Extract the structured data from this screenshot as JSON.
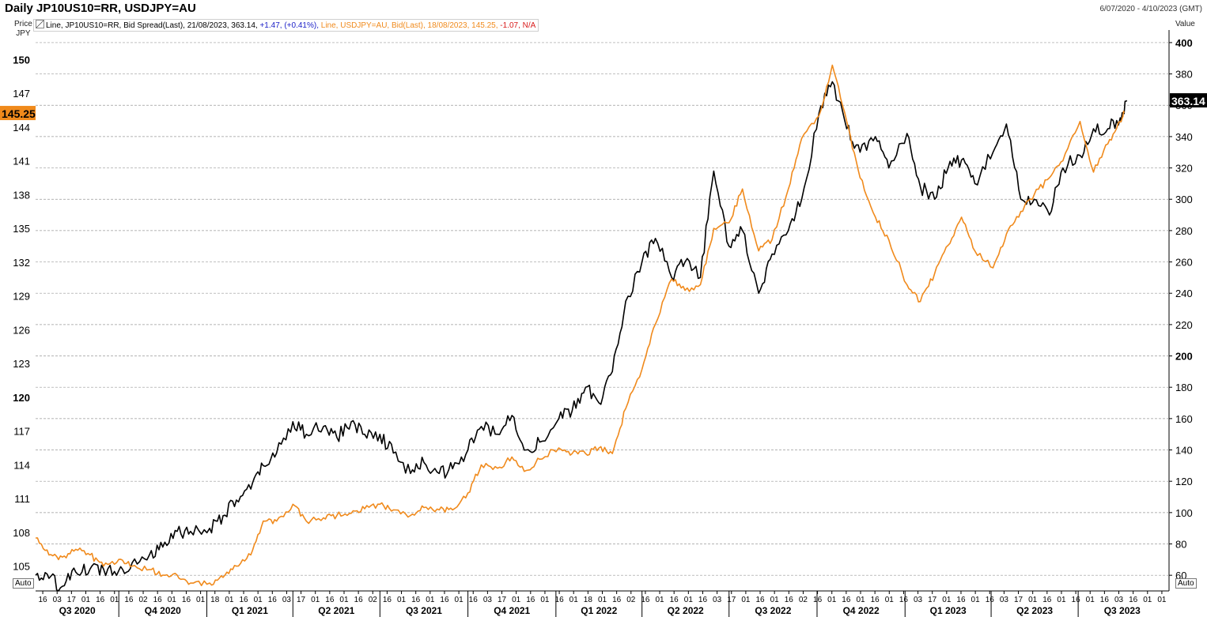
{
  "header": {
    "title": "Daily JP10US10=RR, USDJPY=AU",
    "date_range": "6/07/2020 - 4/10/2023 (GMT)",
    "left_unit_top": "Price",
    "left_unit_bottom": "JPY",
    "right_unit": "Value",
    "auto_left": "Auto",
    "auto_right": "Auto"
  },
  "legend": {
    "s1_text": "Line, JP10US10=RR, Bid Spread(Last), 21/08/2023, 363.14,",
    "s1_change": "+1.47,",
    "s1_pct": "(+0.41%),",
    "s2_text": "Line, USDJPY=AU, Bid(Last), 18/08/2023, 145.25,",
    "s2_change": "-1.07,",
    "s2_na": "N/A"
  },
  "colors": {
    "spread": "#000000",
    "usdjpy": "#f08a1c",
    "grid": "#9a9a9a",
    "left_badge": "#f08a1c",
    "right_badge": "#000000"
  },
  "chart_data": {
    "type": "line",
    "x_range": [
      "2020-07-06",
      "2023-10-04"
    ],
    "left_axis": {
      "unit": "JPY",
      "ylim": [
        102.8,
        152.2
      ],
      "ticks": [
        105,
        108,
        111,
        114,
        117,
        120,
        123,
        126,
        129,
        132,
        135,
        138,
        141,
        144,
        147,
        150
      ],
      "bold_ticks": [
        120,
        150
      ]
    },
    "right_axis": {
      "ylim": [
        50,
        405
      ],
      "ticks": [
        60,
        80,
        100,
        120,
        140,
        160,
        180,
        200,
        220,
        240,
        260,
        280,
        300,
        320,
        340,
        360,
        380,
        400
      ],
      "bold_ticks": [
        200,
        400
      ]
    },
    "last_values": {
      "left": "145.25",
      "right": "363.14"
    },
    "quarters": [
      "Q3 2020",
      "Q4 2020",
      "Q1 2021",
      "Q2 2021",
      "Q3 2021",
      "Q4 2021",
      "Q1 2022",
      "Q2 2022",
      "Q3 2022",
      "Q4 2022",
      "Q1 2023",
      "Q2 2023",
      "Q3 2023"
    ],
    "day_ticks": [
      "16",
      "03",
      "17",
      "01",
      "16",
      "01",
      "16",
      "02",
      "16",
      "01",
      "16",
      "01",
      "18",
      "01",
      "16",
      "01",
      "16",
      "03",
      "17",
      "01",
      "16",
      "01",
      "16",
      "02",
      "16",
      "01",
      "16",
      "01",
      "16",
      "01",
      "16",
      "03",
      "17",
      "01",
      "16",
      "01",
      "16",
      "01",
      "18",
      "01",
      "16",
      "02",
      "16",
      "01",
      "16",
      "01",
      "16",
      "03",
      "17",
      "01",
      "16",
      "01",
      "16",
      "02",
      "16",
      "01",
      "16",
      "01",
      "16",
      "01",
      "16",
      "03",
      "17",
      "01",
      "16",
      "01",
      "16",
      "03",
      "17",
      "01",
      "16",
      "01",
      "16",
      "01",
      "16",
      "03",
      "16",
      "01",
      "01"
    ],
    "grid": "horizontal dashed",
    "series": [
      {
        "name": "JP10US10=RR",
        "axis": "right",
        "x": [
          "2020-07-06",
          "2020-07-20",
          "2020-08-03",
          "2020-08-17",
          "2020-09-01",
          "2020-09-15",
          "2020-10-01",
          "2020-10-15",
          "2020-11-02",
          "2020-11-16",
          "2020-12-01",
          "2020-12-15",
          "2021-01-04",
          "2021-01-18",
          "2021-02-01",
          "2021-02-16",
          "2021-03-01",
          "2021-03-15",
          "2021-04-01",
          "2021-04-15",
          "2021-05-03",
          "2021-05-17",
          "2021-06-01",
          "2021-06-15",
          "2021-07-01",
          "2021-07-15",
          "2021-08-02",
          "2021-08-16",
          "2021-09-01",
          "2021-09-15",
          "2021-10-01",
          "2021-10-15",
          "2021-11-01",
          "2021-11-16",
          "2021-12-01",
          "2021-12-15",
          "2022-01-04",
          "2022-01-18",
          "2022-02-01",
          "2022-02-15",
          "2022-03-01",
          "2022-03-15",
          "2022-04-01",
          "2022-04-15",
          "2022-05-02",
          "2022-05-16",
          "2022-06-01",
          "2022-06-15",
          "2022-07-01",
          "2022-07-15",
          "2022-08-01",
          "2022-08-15",
          "2022-09-01",
          "2022-09-15",
          "2022-10-03",
          "2022-10-17",
          "2022-11-01",
          "2022-11-15",
          "2022-12-01",
          "2022-12-15",
          "2023-01-03",
          "2023-01-17",
          "2023-02-01",
          "2023-02-15",
          "2023-03-01",
          "2023-03-15",
          "2023-04-03",
          "2023-04-17",
          "2023-05-02",
          "2023-05-16",
          "2023-06-01",
          "2023-06-15",
          "2023-07-03",
          "2023-07-17",
          "2023-08-01",
          "2023-08-14",
          "2023-08-21"
        ],
        "values": [
          60,
          58,
          53,
          62,
          64,
          64,
          63,
          68,
          73,
          78,
          88,
          88,
          90,
          98,
          108,
          115,
          130,
          138,
          158,
          150,
          155,
          148,
          158,
          150,
          150,
          138,
          125,
          132,
          125,
          128,
          140,
          155,
          150,
          162,
          140,
          145,
          160,
          165,
          180,
          170,
          190,
          235,
          260,
          275,
          250,
          260,
          250,
          318,
          270,
          280,
          240,
          265,
          280,
          300,
          355,
          375,
          345,
          330,
          340,
          320,
          342,
          308,
          300,
          320,
          325,
          310,
          330,
          348,
          300,
          300,
          290,
          320,
          328,
          345,
          345,
          352,
          363
        ]
      },
      {
        "name": "USDJPY=AU",
        "axis": "left",
        "x": [
          "2020-07-06",
          "2020-07-20",
          "2020-08-03",
          "2020-08-17",
          "2020-09-01",
          "2020-09-15",
          "2020-10-01",
          "2020-10-15",
          "2020-11-02",
          "2020-11-16",
          "2020-12-01",
          "2020-12-15",
          "2021-01-04",
          "2021-01-18",
          "2021-02-01",
          "2021-02-16",
          "2021-03-01",
          "2021-03-15",
          "2021-04-01",
          "2021-04-15",
          "2021-05-03",
          "2021-05-17",
          "2021-06-01",
          "2021-06-15",
          "2021-07-01",
          "2021-07-15",
          "2021-08-02",
          "2021-08-16",
          "2021-09-01",
          "2021-09-15",
          "2021-10-01",
          "2021-10-15",
          "2021-11-01",
          "2021-11-16",
          "2021-12-01",
          "2021-12-15",
          "2022-01-04",
          "2022-01-18",
          "2022-02-01",
          "2022-02-15",
          "2022-03-01",
          "2022-03-15",
          "2022-04-01",
          "2022-04-15",
          "2022-05-02",
          "2022-05-16",
          "2022-06-01",
          "2022-06-15",
          "2022-07-01",
          "2022-07-15",
          "2022-08-01",
          "2022-08-15",
          "2022-09-01",
          "2022-09-15",
          "2022-10-03",
          "2022-10-17",
          "2022-11-01",
          "2022-11-15",
          "2022-12-01",
          "2022-12-15",
          "2023-01-03",
          "2023-01-17",
          "2023-02-01",
          "2023-02-15",
          "2023-03-01",
          "2023-03-15",
          "2023-04-03",
          "2023-04-17",
          "2023-05-02",
          "2023-05-16",
          "2023-06-01",
          "2023-06-15",
          "2023-07-03",
          "2023-07-17",
          "2023-08-01",
          "2023-08-14",
          "2023-08-18"
        ],
        "values": [
          107.5,
          106.0,
          105.8,
          106.5,
          106.0,
          105.0,
          105.6,
          105.0,
          104.7,
          104.2,
          104.2,
          103.5,
          103.5,
          104.0,
          105.0,
          106.0,
          109.0,
          109.0,
          110.5,
          109.0,
          109.3,
          109.5,
          109.7,
          110.1,
          110.5,
          110.0,
          109.5,
          110.2,
          110.0,
          110.0,
          111.5,
          114.0,
          113.7,
          114.7,
          113.5,
          114.5,
          115.5,
          115.0,
          115.0,
          115.5,
          115.0,
          119.0,
          122.5,
          126.5,
          130.5,
          129.5,
          130.0,
          135.0,
          135.5,
          138.5,
          133.0,
          134.0,
          138.5,
          143.0,
          145.0,
          149.5,
          144.5,
          139.5,
          136.0,
          134.0,
          130.0,
          128.5,
          131.0,
          133.5,
          136.0,
          133.0,
          131.5,
          134.5,
          136.5,
          138.0,
          139.5,
          141.0,
          144.5,
          140.0,
          142.5,
          144.5,
          145.25
        ]
      }
    ]
  }
}
